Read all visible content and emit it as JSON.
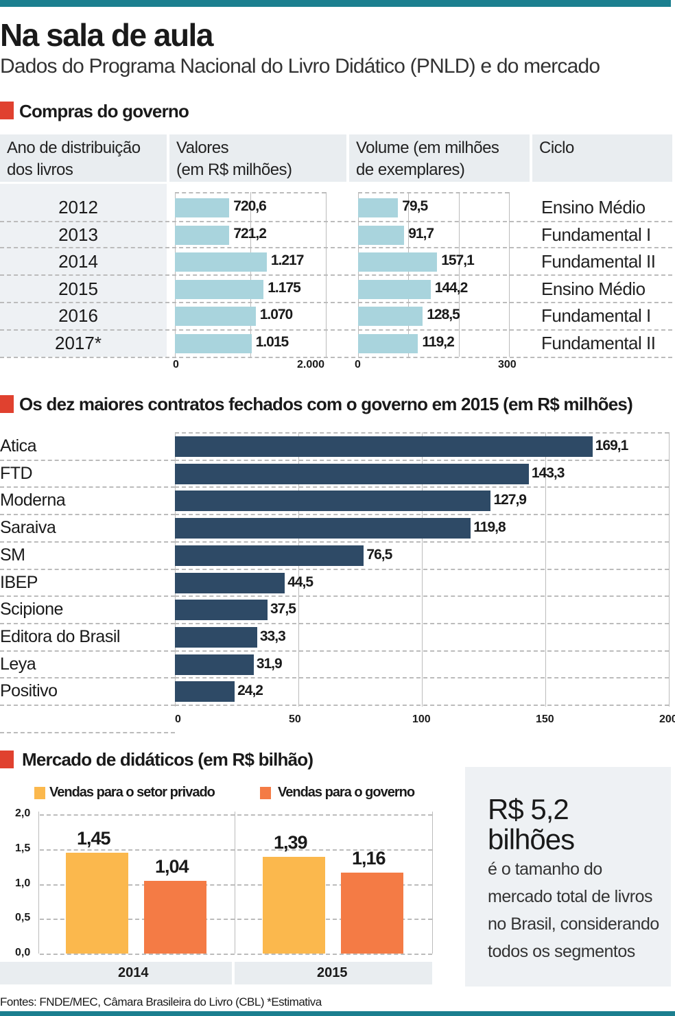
{
  "header": {
    "title": "Na sala de aula",
    "subtitle": "Dados do Programa Nacional do Livro Didático (PNLD) e do mercado"
  },
  "colors": {
    "accent_top": "#1b7f8f",
    "section_marker": "#e0412f",
    "light_bar": "#a9d4dd",
    "dark_bar": "#2e4a66",
    "private": "#fbb84d",
    "government": "#f47b45"
  },
  "chart_data": [
    {
      "type": "table",
      "title": "Compras do governo",
      "columns": [
        "Ano de distribuição dos livros",
        "Valores (em R$ milhões)",
        "Volume (em milhões de exemplares)",
        "Ciclo"
      ],
      "header_lines": [
        [
          "Ano de distribuição",
          "dos livros"
        ],
        [
          "Valores",
          "(em R$ milhões)"
        ],
        [
          "Volume (em milhões",
          "de exemplares)"
        ],
        [
          "Ciclo"
        ]
      ],
      "years": [
        "2012",
        "2013",
        "2014",
        "2015",
        "2016",
        "2017*"
      ],
      "valores": [
        720.6,
        721.2,
        1217,
        1175,
        1070,
        1015
      ],
      "valores_labels": [
        "720,6",
        "721,2",
        "1.217",
        "1.175",
        "1.070",
        "1.015"
      ],
      "valores_xlim": [
        0,
        2000
      ],
      "valores_ticks": [
        "0",
        "2.000"
      ],
      "volume": [
        79.5,
        91.7,
        157.1,
        144.2,
        128.5,
        119.2
      ],
      "volume_labels": [
        "79,5",
        "91,7",
        "157,1",
        "144,2",
        "128,5",
        "119,2"
      ],
      "volume_xlim": [
        0,
        300
      ],
      "volume_ticks": [
        "0",
        "300"
      ],
      "ciclo": [
        "Ensino Médio",
        "Fundamental I",
        "Fundamental II",
        "Ensino Médio",
        "Fundamental I",
        "Fundamental II"
      ]
    },
    {
      "type": "bar",
      "orientation": "horizontal",
      "title": "Os dez maiores contratos fechados com o governo em 2015 (em R$ milhões)",
      "categories": [
        "Atica",
        "FTD",
        "Moderna",
        "Saraiva",
        "SM",
        "IBEP",
        "Scipione",
        "Editora do Brasil",
        "Leya",
        "Positivo"
      ],
      "values": [
        169.1,
        143.3,
        127.9,
        119.8,
        76.5,
        44.5,
        37.5,
        33.3,
        31.9,
        24.2
      ],
      "value_labels": [
        "169,1",
        "143,3",
        "127,9",
        "119,8",
        "76,5",
        "44,5",
        "37,5",
        "33,3",
        "31,9",
        "24,2"
      ],
      "xlim": [
        0,
        200
      ],
      "ticks": [
        "0",
        "50",
        "100",
        "150",
        "200"
      ],
      "grid": true
    },
    {
      "type": "bar",
      "title": "Mercado de didáticos (em R$ bilhão)",
      "categories": [
        "2014",
        "2015"
      ],
      "series": [
        {
          "name": "Vendas para o setor privado",
          "values": [
            1.45,
            1.39
          ],
          "labels": [
            "1,45",
            "1,39"
          ]
        },
        {
          "name": "Vendas para o governo",
          "values": [
            1.04,
            1.16
          ],
          "labels": [
            "1,04",
            "1,16"
          ]
        }
      ],
      "ylim": [
        0,
        2.0
      ],
      "yticks": [
        "2,0",
        "1,5",
        "1,0",
        "0,5",
        "0,0"
      ],
      "legend": "top",
      "grid": true
    }
  ],
  "callout": {
    "value": "R$ 5,2",
    "unit": "bilhões",
    "lines": [
      "é o tamanho do",
      "mercado total de livros",
      "no Brasil, considerando",
      "todos os segmentos"
    ]
  },
  "footer": "Fontes: FNDE/MEC, Câmara Brasileira do Livro (CBL) *Estimativa"
}
